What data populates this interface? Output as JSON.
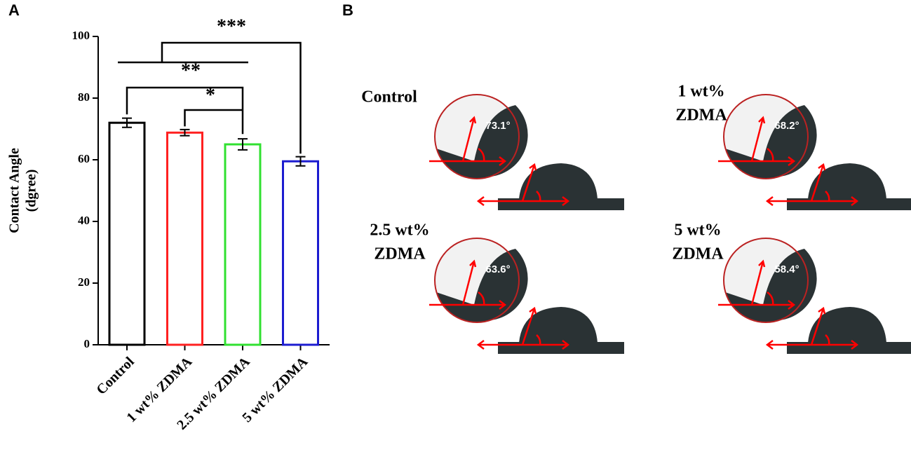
{
  "chart_data": {
    "type": "bar",
    "panel_label": "A",
    "ylabel": [
      "Contact Angle",
      "(dgree)"
    ],
    "categories": [
      "Control",
      "1 wt% ZDMA",
      "2.5 wt% ZDMA",
      "5 wt% ZDMA"
    ],
    "values": [
      72,
      68.8,
      65,
      59.5
    ],
    "errors": [
      1.5,
      1,
      1.8,
      1.5
    ],
    "colors": [
      "#000000",
      "#ff2020",
      "#30e030",
      "#1c1cd0"
    ],
    "ylim": [
      0,
      100
    ],
    "yticks": [
      0,
      20,
      40,
      60,
      80,
      100
    ],
    "annotations": [
      "***",
      "**",
      "*"
    ]
  },
  "panel_b": {
    "panel_label": "B",
    "samples": [
      {
        "name": [
          "Control"
        ],
        "angle": "73.1°"
      },
      {
        "name": [
          "1 wt%",
          "ZDMA"
        ],
        "angle": "68.2°"
      },
      {
        "name": [
          "2.5 wt%",
          "ZDMA"
        ],
        "angle": "63.6°"
      },
      {
        "name": [
          "5 wt%",
          "ZDMA"
        ],
        "angle": "58.4°"
      }
    ]
  }
}
